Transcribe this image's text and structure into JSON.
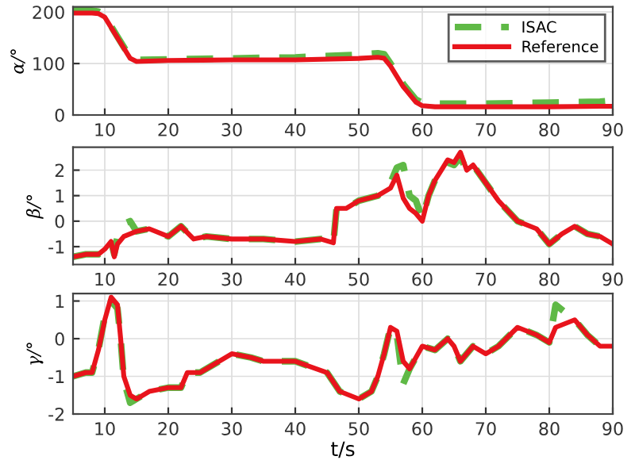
{
  "chart_data": [
    {
      "type": "line",
      "ylabel": "α/°",
      "xlim": [
        5,
        90
      ],
      "xticks": [
        10,
        20,
        30,
        40,
        50,
        60,
        70,
        80,
        90
      ],
      "ylim": [
        0,
        210
      ],
      "yticks": [
        0,
        100,
        200
      ],
      "grid": true,
      "legend": "top right",
      "x": [
        5,
        8,
        9,
        10,
        12,
        14,
        15,
        20,
        30,
        40,
        50,
        53,
        54,
        55,
        57,
        59,
        60,
        62,
        70,
        80,
        88,
        90
      ],
      "series": [
        {
          "name": "ISAC",
          "color": "#5fb946",
          "line_style": "dashed",
          "values": [
            203,
            203,
            201,
            193,
            152,
            112,
            107,
            108,
            110,
            112,
            117,
            120,
            118,
            100,
            60,
            30,
            24,
            22,
            22,
            24,
            26,
            28
          ]
        },
        {
          "name": "Reference",
          "color": "#e8141c",
          "line_style": "solid",
          "values": [
            198,
            198,
            197,
            190,
            150,
            110,
            104,
            106,
            107,
            107,
            110,
            112,
            110,
            95,
            55,
            25,
            18,
            16,
            16,
            16,
            17,
            17
          ]
        }
      ]
    },
    {
      "type": "line",
      "ylabel": "β/°",
      "xlim": [
        5,
        90
      ],
      "xticks": [
        10,
        20,
        30,
        40,
        50,
        60,
        70,
        80,
        90
      ],
      "ylim": [
        -1.7,
        2.9
      ],
      "yticks": [
        -1,
        0,
        1,
        2
      ],
      "grid": true,
      "x": [
        5,
        7,
        9,
        10,
        11,
        11.5,
        12,
        13,
        14,
        15,
        17,
        20,
        22,
        24,
        26,
        30,
        35,
        40,
        44,
        46,
        46.5,
        48,
        50,
        53,
        55,
        56,
        57,
        58,
        59,
        60,
        61,
        62,
        63,
        64,
        65,
        66,
        67,
        68,
        70,
        72,
        75,
        78,
        80,
        82,
        84,
        86,
        88,
        90
      ],
      "series": [
        {
          "color": "#5fb946",
          "line_style": "dashed",
          "values": [
            -1.4,
            -1.3,
            -1.3,
            -1.1,
            -0.8,
            -1.3,
            -0.6,
            -0.1,
            0.0,
            -0.4,
            -0.3,
            -0.6,
            -0.2,
            -0.7,
            -0.6,
            -0.7,
            -0.7,
            -0.8,
            -0.7,
            -0.85,
            0.5,
            0.5,
            0.8,
            1.0,
            1.5,
            2.1,
            2.2,
            1.0,
            0.8,
            0.1,
            1.0,
            1.6,
            2.0,
            2.3,
            2.2,
            2.5,
            2.0,
            2.2,
            1.5,
            0.8,
            0.0,
            -0.3,
            -0.9,
            -0.5,
            -0.2,
            -0.5,
            -0.6,
            -0.9
          ]
        },
        {
          "color": "#e8141c",
          "line_style": "solid",
          "values": [
            -1.4,
            -1.3,
            -1.3,
            -1.1,
            -0.8,
            -1.4,
            -0.9,
            -0.6,
            -0.5,
            -0.4,
            -0.3,
            -0.6,
            -0.2,
            -0.7,
            -0.6,
            -0.7,
            -0.7,
            -0.8,
            -0.7,
            -0.85,
            0.5,
            0.5,
            0.8,
            1.0,
            1.3,
            1.8,
            0.9,
            0.5,
            0.3,
            0.0,
            1.0,
            1.6,
            2.0,
            2.4,
            2.3,
            2.7,
            2.0,
            2.2,
            1.5,
            0.8,
            0.0,
            -0.3,
            -0.9,
            -0.5,
            -0.2,
            -0.5,
            -0.6,
            -0.9
          ]
        }
      ]
    },
    {
      "type": "line",
      "ylabel": "γ/°",
      "xlabel": "t/s",
      "xlim": [
        5,
        90
      ],
      "xticks": [
        10,
        20,
        30,
        40,
        50,
        60,
        70,
        80,
        90
      ],
      "ylim": [
        -2,
        1.2
      ],
      "yticks": [
        -2,
        -1,
        0,
        1
      ],
      "grid": true,
      "x": [
        5,
        7,
        8,
        9,
        10,
        11,
        12,
        12.5,
        13,
        14,
        15,
        17,
        20,
        22,
        23,
        25,
        28,
        30,
        33,
        35,
        40,
        45,
        47,
        50,
        52,
        53,
        54,
        55,
        56,
        57,
        58,
        60,
        62,
        64,
        65,
        66,
        68,
        70,
        72,
        75,
        78,
        80,
        81,
        84,
        86,
        88,
        90
      ],
      "series": [
        {
          "color": "#5fb946",
          "line_style": "dashed",
          "values": [
            -1.0,
            -0.9,
            -0.9,
            -0.3,
            0.6,
            1.0,
            0.8,
            0,
            -1.1,
            -1.7,
            -1.6,
            -1.4,
            -1.3,
            -1.3,
            -0.9,
            -0.9,
            -0.6,
            -0.4,
            -0.5,
            -0.6,
            -0.6,
            -0.9,
            -1.4,
            -1.6,
            -1.4,
            -1.0,
            -0.4,
            0.3,
            0.1,
            -1.2,
            -0.8,
            -0.2,
            -0.3,
            0,
            -0.2,
            -0.6,
            -0.2,
            -0.4,
            -0.2,
            0.3,
            0.1,
            -0.1,
            0.9,
            0.5,
            0.1,
            -0.2,
            -0.2
          ]
        },
        {
          "color": "#e8141c",
          "line_style": "solid",
          "values": [
            -1.0,
            -0.9,
            -0.9,
            -0.3,
            0.5,
            1.1,
            0.9,
            0,
            -1.0,
            -1.5,
            -1.6,
            -1.4,
            -1.3,
            -1.3,
            -0.9,
            -0.9,
            -0.6,
            -0.4,
            -0.5,
            -0.6,
            -0.6,
            -0.9,
            -1.4,
            -1.6,
            -1.4,
            -1.0,
            -0.4,
            0.3,
            0.2,
            -0.6,
            -0.8,
            -0.2,
            -0.3,
            0,
            -0.2,
            -0.6,
            -0.2,
            -0.4,
            -0.2,
            0.3,
            0.1,
            -0.1,
            0.3,
            0.5,
            0.1,
            -0.2,
            -0.2
          ]
        }
      ]
    }
  ]
}
